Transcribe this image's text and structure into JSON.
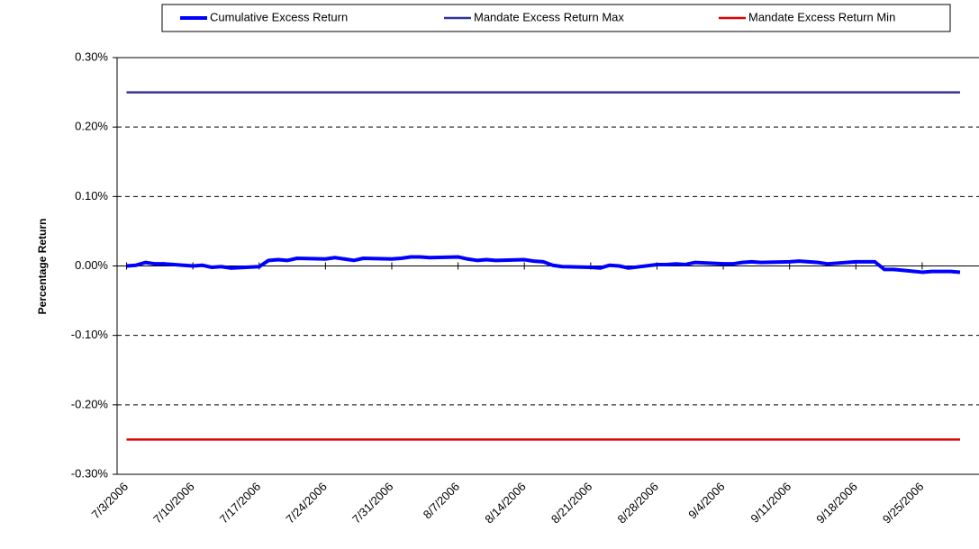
{
  "chart_data": {
    "type": "line",
    "y_label": "Percentage Return",
    "x": [
      "7/3/2006",
      "7/4/2006",
      "7/5/2006",
      "7/6/2006",
      "7/7/2006",
      "7/10/2006",
      "7/11/2006",
      "7/12/2006",
      "7/13/2006",
      "7/14/2006",
      "7/17/2006",
      "7/18/2006",
      "7/19/2006",
      "7/20/2006",
      "7/21/2006",
      "7/24/2006",
      "7/25/2006",
      "7/26/2006",
      "7/27/2006",
      "7/28/2006",
      "7/31/2006",
      "8/1/2006",
      "8/2/2006",
      "8/3/2006",
      "8/4/2006",
      "8/7/2006",
      "8/8/2006",
      "8/9/2006",
      "8/10/2006",
      "8/11/2006",
      "8/14/2006",
      "8/15/2006",
      "8/16/2006",
      "8/17/2006",
      "8/18/2006",
      "8/21/2006",
      "8/22/2006",
      "8/23/2006",
      "8/24/2006",
      "8/25/2006",
      "8/28/2006",
      "8/29/2006",
      "8/30/2006",
      "8/31/2006",
      "9/1/2006",
      "9/4/2006",
      "9/5/2006",
      "9/6/2006",
      "9/7/2006",
      "9/8/2006",
      "9/11/2006",
      "9/12/2006",
      "9/13/2006",
      "9/14/2006",
      "9/15/2006",
      "9/18/2006",
      "9/19/2006",
      "9/20/2006",
      "9/21/2006",
      "9/22/2006",
      "9/25/2006",
      "9/26/2006",
      "9/27/2006",
      "9/28/2006",
      "9/29/2006"
    ],
    "series": [
      {
        "name": "Cumulative Excess Return",
        "color": "#0000ff",
        "width": 4,
        "values": [
          0,
          0.001,
          0.005,
          0.003,
          0.003,
          0.0,
          0.001,
          -0.002,
          -0.001,
          -0.003,
          -0.001,
          0.008,
          0.009,
          0.008,
          0.011,
          0.01,
          0.012,
          0.01,
          0.008,
          0.011,
          0.01,
          0.011,
          0.013,
          0.013,
          0.012,
          0.013,
          0.01,
          0.008,
          0.009,
          0.008,
          0.009,
          0.007,
          0.006,
          0.001,
          -0.001,
          -0.002,
          -0.003,
          0.001,
          0.0,
          -0.003,
          0.002,
          0.002,
          0.003,
          0.002,
          0.005,
          0.003,
          0.003,
          0.005,
          0.006,
          0.005,
          0.006,
          0.007,
          0.006,
          0.005,
          0.003,
          0.006,
          0.006,
          0.006,
          -0.005,
          -0.005,
          -0.009,
          -0.008,
          -0.008,
          -0.008,
          -0.009
        ]
      },
      {
        "name": "Mandate Excess Return Max",
        "color": "#333399",
        "width": 2.5,
        "values": [
          0.25,
          0.25,
          0.25,
          0.25,
          0.25,
          0.25,
          0.25,
          0.25,
          0.25,
          0.25,
          0.25,
          0.25,
          0.25,
          0.25,
          0.25,
          0.25,
          0.25,
          0.25,
          0.25,
          0.25,
          0.25,
          0.25,
          0.25,
          0.25,
          0.25,
          0.25,
          0.25,
          0.25,
          0.25,
          0.25,
          0.25,
          0.25,
          0.25,
          0.25,
          0.25,
          0.25,
          0.25,
          0.25,
          0.25,
          0.25,
          0.25,
          0.25,
          0.25,
          0.25,
          0.25,
          0.25,
          0.25,
          0.25,
          0.25,
          0.25,
          0.25,
          0.25,
          0.25,
          0.25,
          0.25,
          0.25,
          0.25,
          0.25,
          0.25,
          0.25,
          0.25,
          0.25,
          0.25,
          0.25,
          0.25
        ]
      },
      {
        "name": "Mandate Excess Return Min",
        "color": "#dd0000",
        "width": 2.5,
        "values": [
          -0.25,
          -0.25,
          -0.25,
          -0.25,
          -0.25,
          -0.25,
          -0.25,
          -0.25,
          -0.25,
          -0.25,
          -0.25,
          -0.25,
          -0.25,
          -0.25,
          -0.25,
          -0.25,
          -0.25,
          -0.25,
          -0.25,
          -0.25,
          -0.25,
          -0.25,
          -0.25,
          -0.25,
          -0.25,
          -0.25,
          -0.25,
          -0.25,
          -0.25,
          -0.25,
          -0.25,
          -0.25,
          -0.25,
          -0.25,
          -0.25,
          -0.25,
          -0.25,
          -0.25,
          -0.25,
          -0.25,
          -0.25,
          -0.25,
          -0.25,
          -0.25,
          -0.25,
          -0.25,
          -0.25,
          -0.25,
          -0.25,
          -0.25,
          -0.25,
          -0.25,
          -0.25,
          -0.25,
          -0.25,
          -0.25,
          -0.25,
          -0.25,
          -0.25,
          -0.25,
          -0.25,
          -0.25,
          -0.25,
          -0.25,
          -0.25
        ]
      }
    ],
    "xlim": [
      "7/2/2006",
      "10/1/2006"
    ],
    "xticks": [
      "7/3/2006",
      "7/10/2006",
      "7/17/2006",
      "7/24/2006",
      "7/31/2006",
      "8/7/2006",
      "8/14/2006",
      "8/21/2006",
      "8/28/2006",
      "9/4/2006",
      "9/11/2006",
      "9/18/2006",
      "9/25/2006"
    ],
    "ylim": [
      -0.3,
      0.3
    ],
    "yticks": [
      {
        "value": -0.3,
        "label": "-0.30%"
      },
      {
        "value": -0.2,
        "label": "-0.20%"
      },
      {
        "value": -0.1,
        "label": "-0.10%"
      },
      {
        "value": 0,
        "label": "0.00%"
      },
      {
        "value": 0.1,
        "label": "0.10%"
      },
      {
        "value": 0.2,
        "label": "0.20%"
      },
      {
        "value": 0.3,
        "label": "0.30%"
      }
    ],
    "grid": true,
    "legend": "top"
  }
}
